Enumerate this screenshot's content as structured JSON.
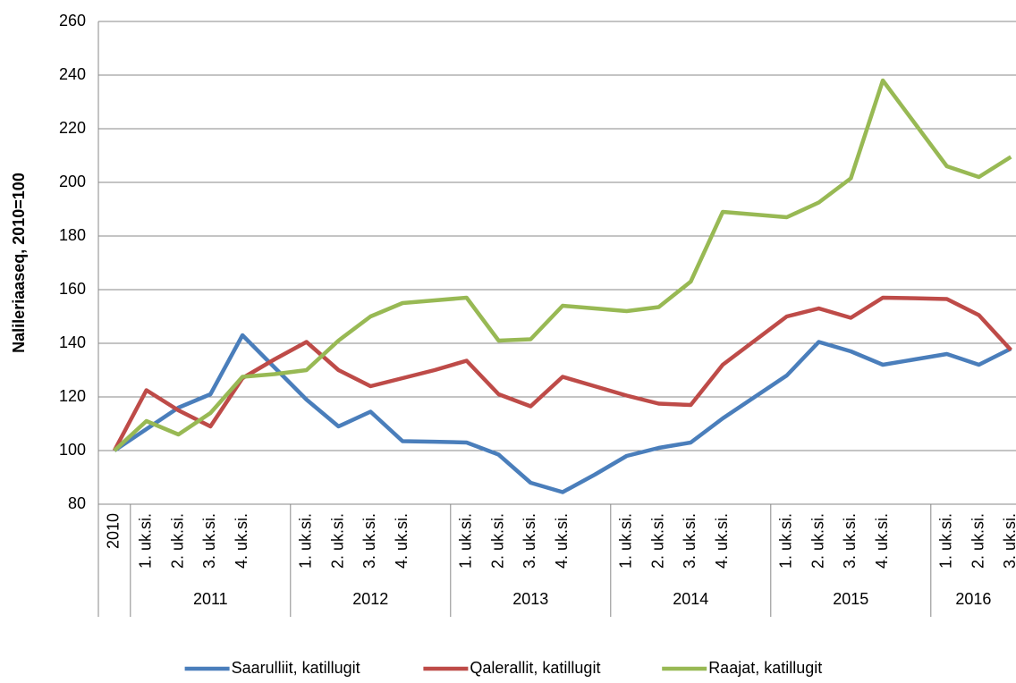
{
  "chart_data": {
    "type": "line",
    "y_label": "Nalileriaaseq, 2010=100",
    "categories": [
      "2010",
      "1. uk.si.",
      "2. uk.si.",
      "3. uk.si.",
      "4. uk.si.",
      null,
      "1. uk.si.",
      "2. uk.si.",
      "3. uk.si.",
      "4. uk.si.",
      null,
      "1. uk.si.",
      "2. uk.si.",
      "3. uk.si.",
      "4. uk.si.",
      null,
      "1. uk.si.",
      "2. uk.si.",
      "3. uk.si.",
      "4. uk.si.",
      null,
      "1. uk.si.",
      "2. uk.si.",
      "3. uk.si.",
      "4. uk.si.",
      null,
      "1. uk.si.",
      "2. uk.si.",
      "3. uk.si."
    ],
    "category_groups": [
      {
        "name": "2011",
        "span": 5
      },
      {
        "name": "2012",
        "span": 5
      },
      {
        "name": "2013",
        "span": 5
      },
      {
        "name": "2014",
        "span": 5
      },
      {
        "name": "2015",
        "span": 5
      },
      {
        "name": "2016",
        "span": 3
      }
    ],
    "series": [
      {
        "name": "Saarulliit, katillugit",
        "color": "#4a7ebb",
        "values": [
          100,
          108,
          116,
          121,
          143,
          131,
          119,
          109,
          114.5,
          103.5,
          103.3,
          103,
          98.5,
          88,
          84.5,
          91,
          98,
          101,
          103,
          112,
          120,
          128,
          140.5,
          137,
          132,
          134,
          136,
          132,
          138
        ]
      },
      {
        "name": "Qalerallit, katillugit",
        "color": "#be4b48",
        "values": [
          100,
          122.5,
          115,
          109,
          127,
          134,
          140.5,
          130,
          124,
          127,
          130,
          133.5,
          121,
          116.5,
          127.5,
          124,
          120.5,
          117.5,
          117,
          132,
          141,
          150,
          153,
          149.5,
          157,
          156.8,
          156.5,
          150.5,
          137.5
        ]
      },
      {
        "name": "Raajat, katillugit",
        "color": "#98b954",
        "values": [
          100,
          111,
          106,
          114,
          127.5,
          128.5,
          130,
          141,
          150,
          155,
          156,
          157,
          141,
          141.5,
          154,
          153,
          152,
          153.5,
          163,
          189,
          188,
          187,
          192.5,
          201.5,
          238,
          222,
          206,
          202,
          209.5
        ]
      }
    ],
    "ylim": [
      80,
      260
    ],
    "yticks": [
      80,
      100,
      120,
      140,
      160,
      180,
      200,
      220,
      240,
      260
    ],
    "grid": true,
    "legend": "bottom"
  }
}
